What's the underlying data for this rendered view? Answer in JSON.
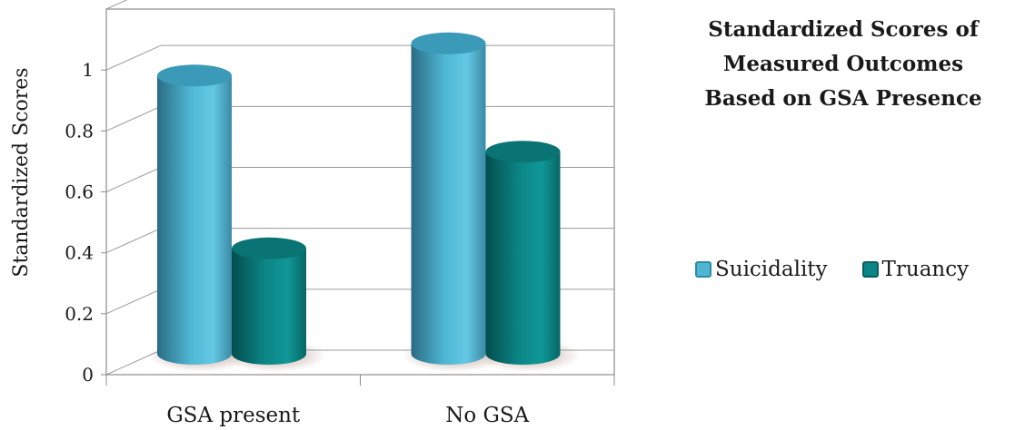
{
  "chart_data": {
    "type": "bar",
    "title": "Standardized Scores of Measured Outcomes Based on GSA Presence",
    "title_lines": [
      "Standardized Scores of",
      "Measured Outcomes",
      "Based on GSA Presence"
    ],
    "xlabel": "",
    "ylabel": "Standardized Scores",
    "categories": [
      "GSA present",
      "No GSA"
    ],
    "series": [
      {
        "name": "Suicidality",
        "values": [
          0.95,
          1.06
        ],
        "color": "#4fb7d4"
      },
      {
        "name": "Truancy",
        "values": [
          0.36,
          0.69
        ],
        "color": "#0b8585"
      }
    ],
    "ylim": [
      0,
      1.2
    ],
    "yticks": [
      "0",
      "0.2",
      "0.4",
      "0.6",
      "0.8",
      "1"
    ],
    "grid": true,
    "legend_position": "right"
  }
}
